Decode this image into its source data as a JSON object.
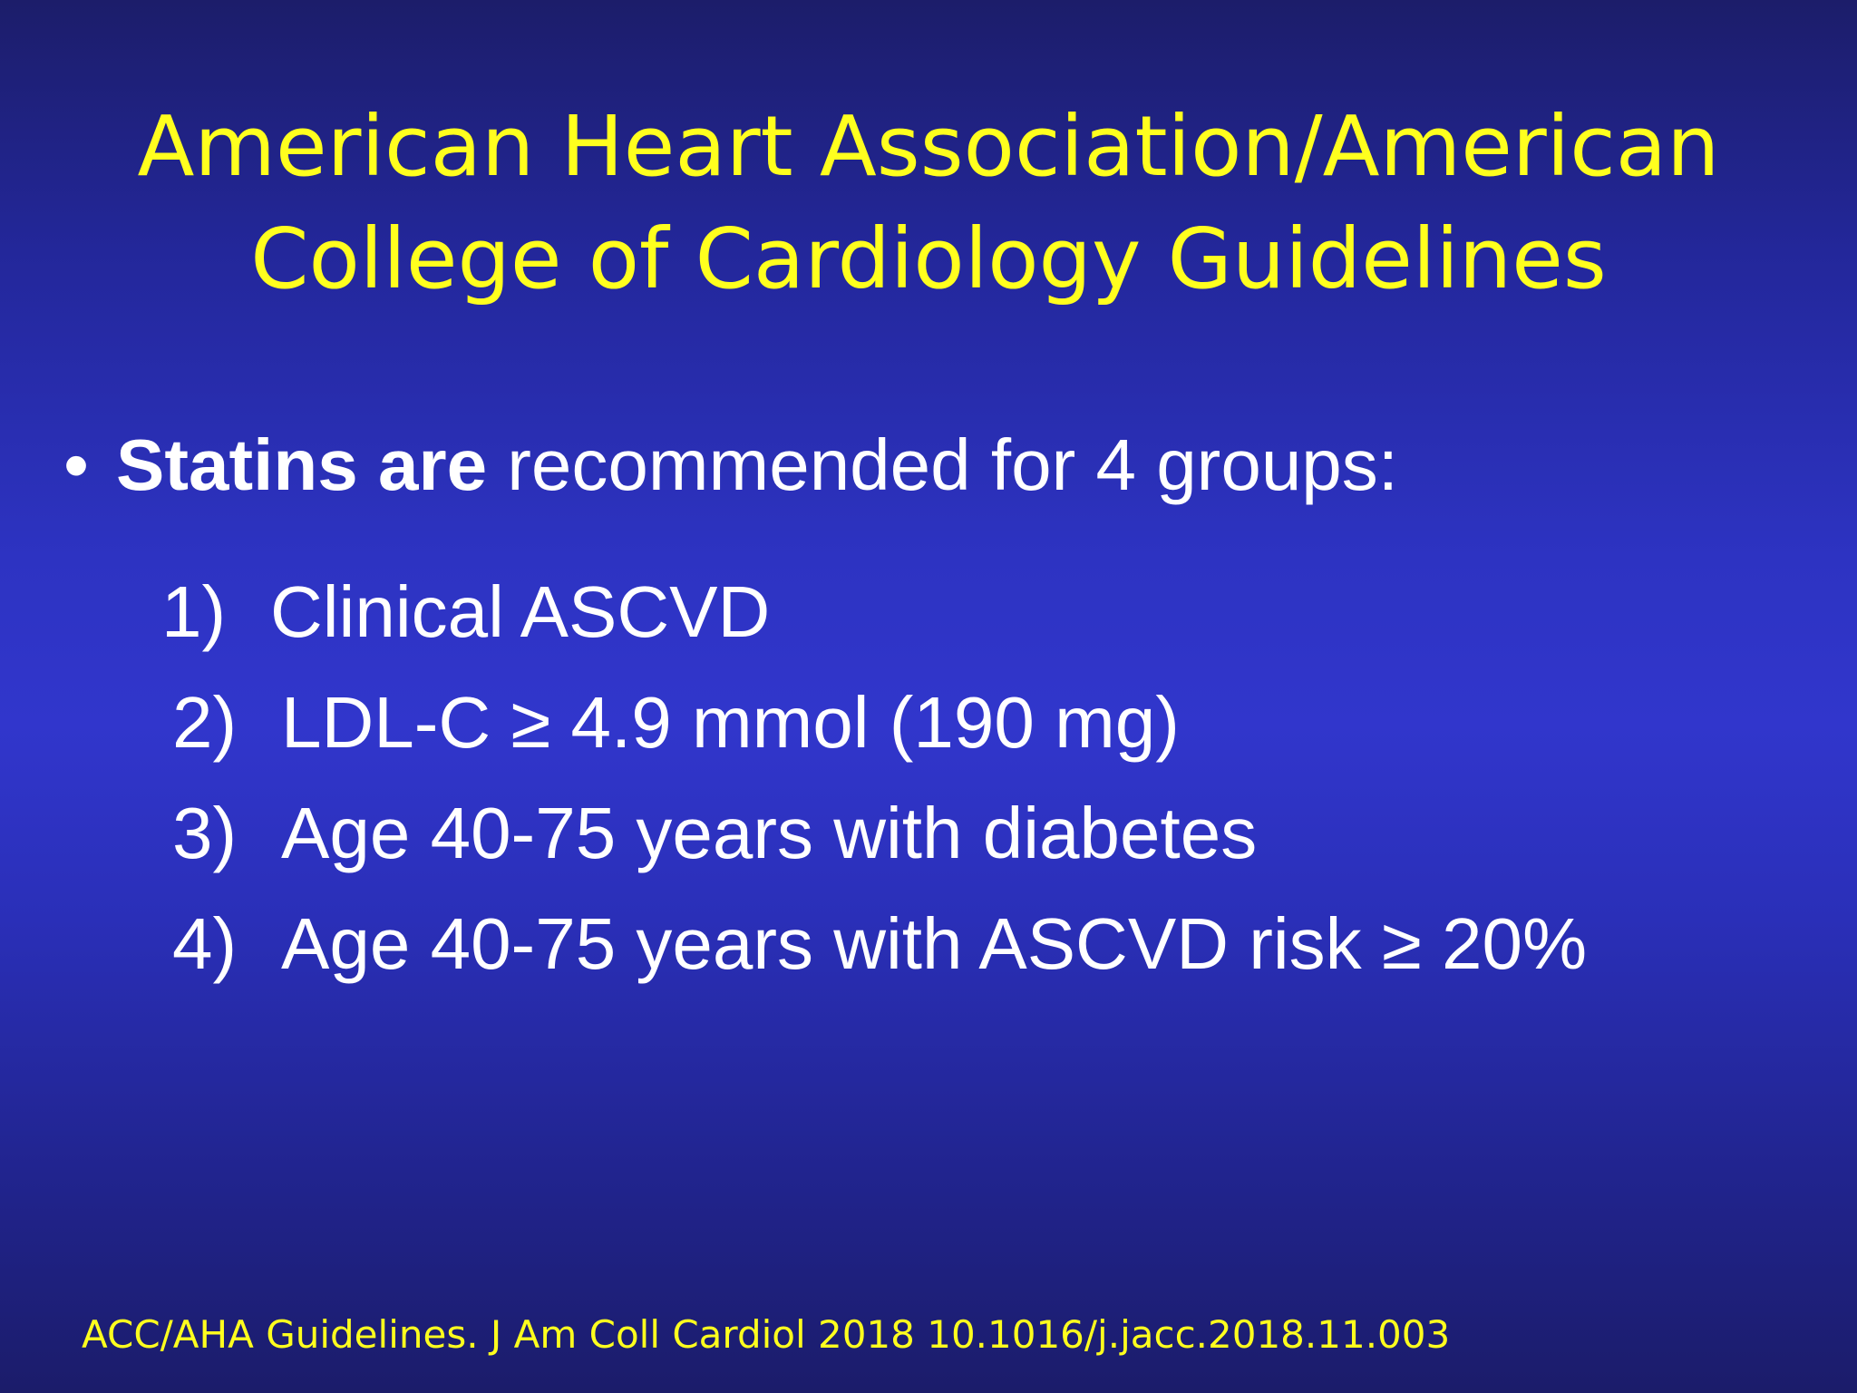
{
  "slide": {
    "title_line1": "American Heart Association/American",
    "title_line2": "College of Cardiology Guidelines",
    "bullet": {
      "marker": "•",
      "bold_text": "Statins are",
      "regular_text": " recommended for 4 groups:"
    },
    "groups": [
      {
        "num": "1)",
        "text": "Clinical ASCVD"
      },
      {
        "num": "2)",
        "text": "LDL-C ≥ 4.9 mmol (190 mg)"
      },
      {
        "num": "3)",
        "text": "Age 40-75 years with diabetes"
      },
      {
        "num": "4)",
        "text": "Age 40-75 years with ASCVD risk ≥ 20%"
      }
    ],
    "citation": "ACC/AHA Guidelines. J Am Coll Cardiol 2018 10.1016/j.jacc.2018.11.003"
  },
  "colors": {
    "title": "#ffff1e",
    "body_text": "#ffffff",
    "background_center": "#3136cc",
    "background_edge": "#1b1c6a"
  }
}
